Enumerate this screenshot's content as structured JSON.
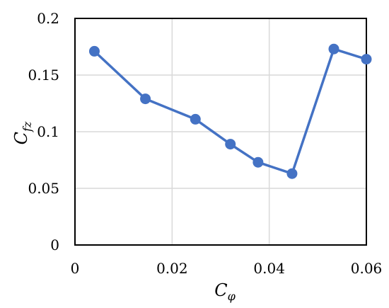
{
  "chart_data": {
    "type": "line",
    "xlabel": "C",
    "xlabel_sub": "φ",
    "ylabel": "C",
    "ylabel_sub": "fz",
    "xlim": [
      0,
      0.06
    ],
    "ylim": [
      0,
      0.2
    ],
    "x_ticks": [
      "0",
      "0.02",
      "0.04",
      "0.06"
    ],
    "y_ticks": [
      "0",
      "0.05",
      "0.1",
      "0.15",
      "0.2"
    ],
    "grid": true,
    "legend": false,
    "colors": {
      "series": "#4472C4",
      "grid": "#d9d9d9",
      "frame": "#000000"
    },
    "series": [
      {
        "x": [
          0.004,
          0.0145,
          0.0248,
          0.032,
          0.0377,
          0.0447,
          0.0533,
          0.06
        ],
        "y": [
          0.171,
          0.129,
          0.111,
          0.089,
          0.073,
          0.063,
          0.173,
          0.164
        ]
      }
    ]
  }
}
